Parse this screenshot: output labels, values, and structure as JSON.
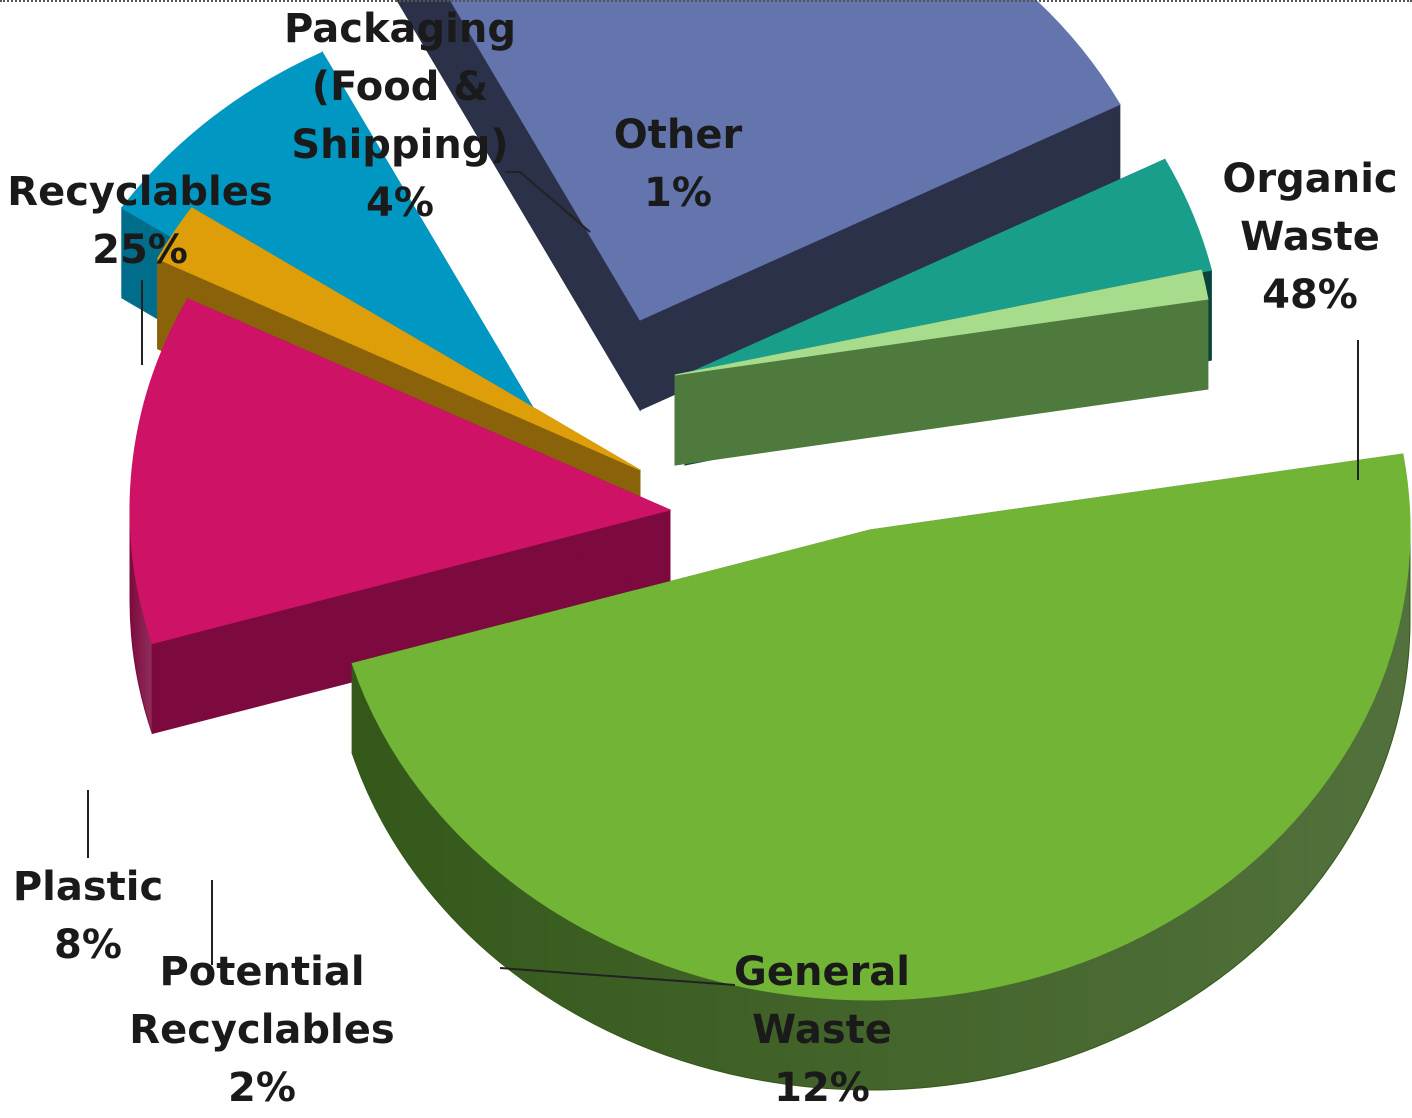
{
  "chart_data": {
    "type": "pie",
    "style": "3d-exploded",
    "title": "",
    "slices": [
      {
        "name": "Organic Waste",
        "value": 48,
        "label_lines": [
          "Organic",
          "Waste"
        ],
        "pct_label": "48%",
        "color": "#72B536",
        "side_color": "#34581A"
      },
      {
        "name": "General Waste",
        "value": 12,
        "label_lines": [
          "General",
          "Waste"
        ],
        "pct_label": "12%",
        "color": "#CE1266",
        "side_color": "#7C0A3E"
      },
      {
        "name": "Potential Recyclables",
        "value": 2,
        "label_lines": [
          "Potential",
          "Recyclables"
        ],
        "pct_label": "2%",
        "color": "#DE9E09",
        "side_color": "#8A6209"
      },
      {
        "name": "Plastic",
        "value": 8,
        "label_lines": [
          "Plastic"
        ],
        "pct_label": "8%",
        "color": "#0098C3",
        "side_color": "#006E8A"
      },
      {
        "name": "Recyclables",
        "value": 25,
        "label_lines": [
          "Recyclables"
        ],
        "pct_label": "25%",
        "color": "#6475AE",
        "side_color": "#2A3148"
      },
      {
        "name": "Packaging (Food & Shipping)",
        "value": 4,
        "label_lines": [
          "Packaging",
          "(Food &",
          "Shipping)"
        ],
        "pct_label": "4%",
        "color": "#199E8B",
        "side_color": "#08433C"
      },
      {
        "name": "Other",
        "value": 1,
        "label_lines": [
          "Other"
        ],
        "pct_label": "1%",
        "color": "#A7DC8C",
        "side_color": "#4E7A3E"
      }
    ]
  }
}
